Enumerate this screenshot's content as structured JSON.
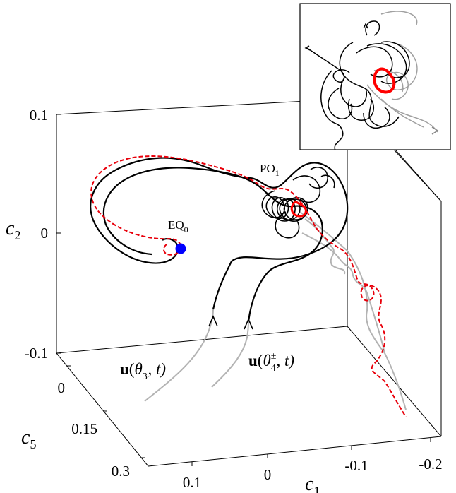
{
  "chart_data": {
    "type": "line",
    "projection": "3d",
    "axes": {
      "c1": {
        "label_base": "c",
        "label_sub": "1",
        "ticks": [
          "0.1",
          "0",
          "-0.1",
          "-0.2"
        ],
        "range": [
          0.15,
          -0.2
        ]
      },
      "c2": {
        "label_base": "c",
        "label_sub": "2",
        "ticks": [
          "0.1",
          "0",
          "-0.1"
        ],
        "range": [
          -0.1,
          0.1
        ]
      },
      "c5": {
        "label_base": "c",
        "label_sub": "5",
        "ticks": [
          "0",
          "0.15",
          "0.3"
        ],
        "range": [
          0,
          0.3
        ]
      }
    },
    "grid": false,
    "annotations": {
      "eq0": {
        "base": "EQ",
        "sub": "0"
      },
      "po1": {
        "base": "PO",
        "sub": "1"
      },
      "traj3": {
        "bold": "u",
        "open": "(",
        "theta": "θ",
        "sub": "3",
        "sup": "±",
        "close": ", t)"
      },
      "traj4": {
        "bold": "u",
        "open": "(",
        "theta": "θ",
        "sub": "4",
        "sup": "±",
        "close": ", t)"
      }
    },
    "series": [
      {
        "style": "black-solid",
        "color": "#000000"
      },
      {
        "style": "red-dashed",
        "color": "#e8000b"
      },
      {
        "style": "grey-solid",
        "color": "#b3b3b3"
      },
      {
        "style": "blue-point",
        "color": "#0000ff"
      }
    ],
    "inset": {
      "shows": "zoom of PO1 region"
    }
  }
}
